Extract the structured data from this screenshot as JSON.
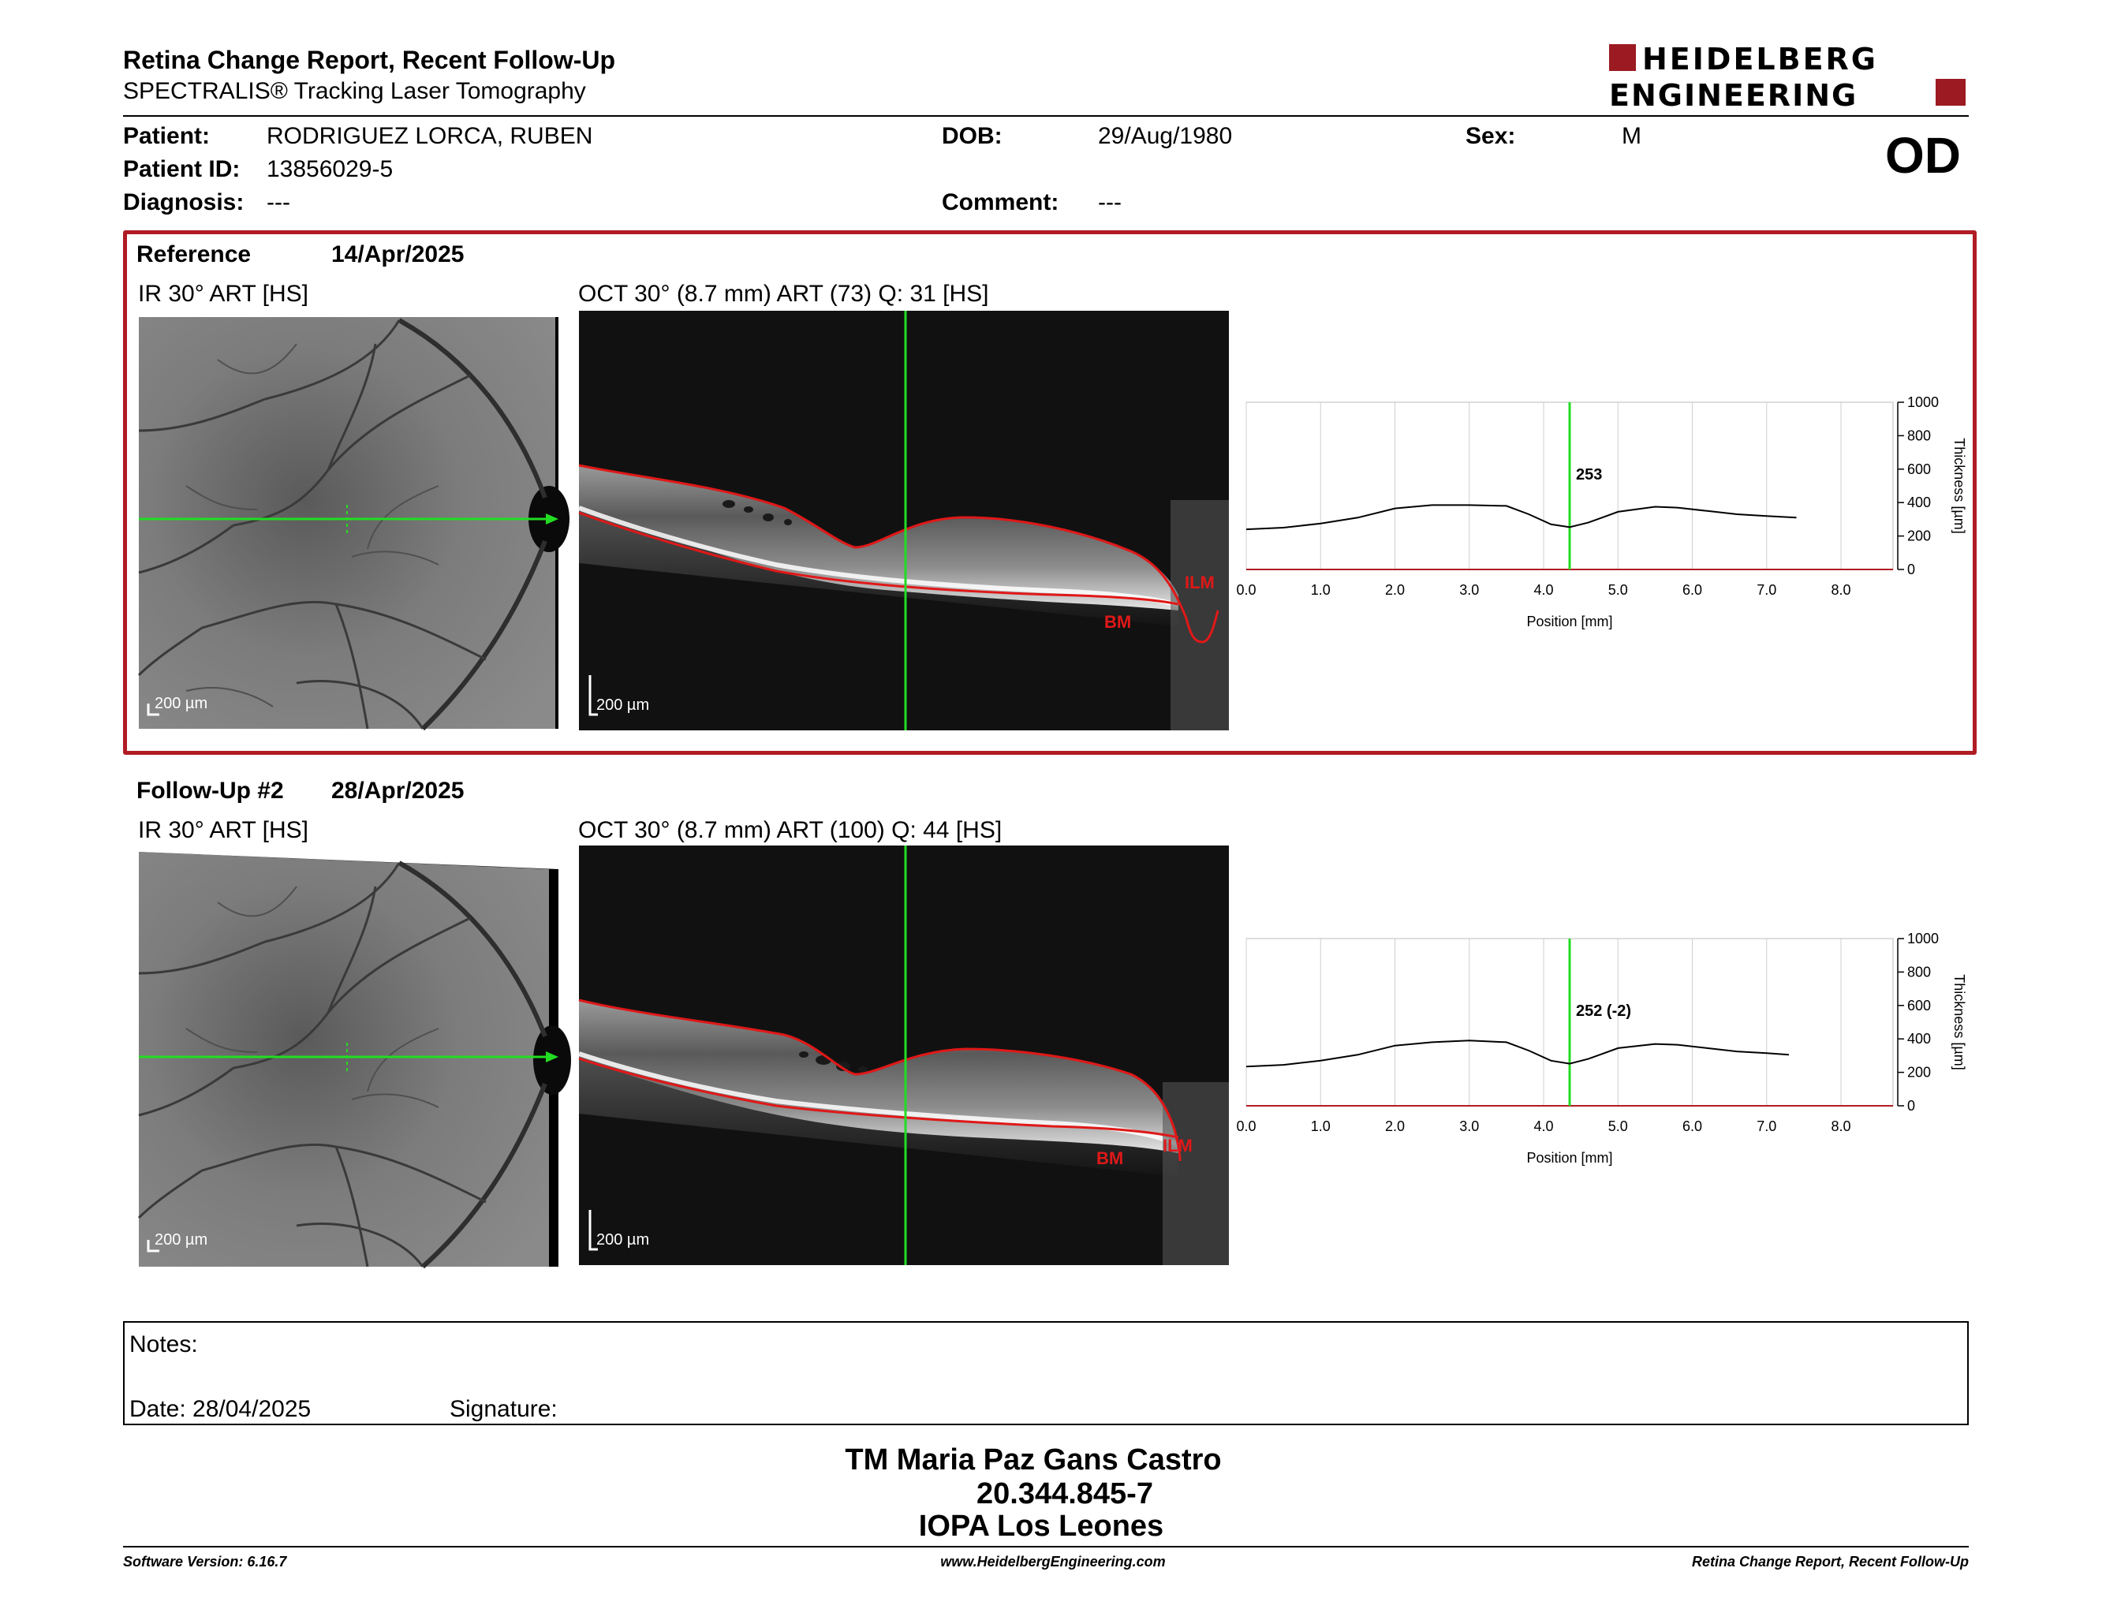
{
  "header": {
    "title": "Retina Change Report, Recent Follow-Up",
    "subtitle": "SPECTRALIS® Tracking Laser Tomography",
    "logo_line1": "HEIDELBERG",
    "logo_line2": "ENGINEERING",
    "eye": "OD"
  },
  "patient": {
    "patient_label": "Patient:",
    "patient_value": "RODRIGUEZ LORCA, RUBEN",
    "id_label": "Patient ID:",
    "id_value": "13856029-5",
    "diag_label": "Diagnosis:",
    "diag_value": "---",
    "dob_label": "DOB:",
    "dob_value": "29/Aug/1980",
    "comment_label": "Comment:",
    "comment_value": "---",
    "sex_label": "Sex:",
    "sex_value": "M"
  },
  "reference": {
    "label": "Reference",
    "date": "14/Apr/2025",
    "ir_caption": "IR 30° ART [HS]",
    "oct_caption": "OCT 30° (8.7 mm) ART (73) Q: 31 [HS]",
    "scale": "200 µm",
    "ilm": "ILM",
    "bm": "BM",
    "marker_value": "253"
  },
  "followup": {
    "label": "Follow-Up #2",
    "date": "28/Apr/2025",
    "ir_caption": "IR 30° ART [HS]",
    "oct_caption": "OCT 30° (8.7 mm) ART (100) Q: 44 [HS]",
    "scale": "200 µm",
    "ilm": "ILM",
    "bm": "BM",
    "marker_value": "252 (-2)"
  },
  "chart_data": [
    {
      "type": "line",
      "xlabel": "Position [mm]",
      "ylabel": "Thickness [µm]",
      "xlim": [
        0,
        8.7
      ],
      "ylim": [
        0,
        1000
      ],
      "xticks": [
        "0.0",
        "1.0",
        "2.0",
        "3.0",
        "4.0",
        "5.0",
        "6.0",
        "7.0",
        "8.0"
      ],
      "yticks": [
        "0",
        "200",
        "400",
        "600",
        "800",
        "1000"
      ],
      "marker_x": 4.35,
      "marker_label": "253",
      "series": [
        {
          "x": [
            0,
            0.5,
            1.0,
            1.5,
            2.0,
            2.5,
            3.0,
            3.5,
            3.8,
            4.1,
            4.35,
            4.6,
            5.0,
            5.5,
            5.8,
            6.2,
            6.6,
            7.0,
            7.4
          ],
          "y": [
            240,
            250,
            275,
            310,
            365,
            385,
            385,
            380,
            330,
            270,
            253,
            280,
            345,
            375,
            370,
            350,
            330,
            320,
            310
          ]
        }
      ]
    },
    {
      "type": "line",
      "xlabel": "Position [mm]",
      "ylabel": "Thickness [µm]",
      "xlim": [
        0,
        8.7
      ],
      "ylim": [
        0,
        1000
      ],
      "xticks": [
        "0.0",
        "1.0",
        "2.0",
        "3.0",
        "4.0",
        "5.0",
        "6.0",
        "7.0",
        "8.0"
      ],
      "yticks": [
        "0",
        "200",
        "400",
        "600",
        "800",
        "1000"
      ],
      "marker_x": 4.35,
      "marker_label": "252 (-2)",
      "series": [
        {
          "x": [
            0,
            0.5,
            1.0,
            1.5,
            2.0,
            2.5,
            3.0,
            3.5,
            3.8,
            4.1,
            4.35,
            4.6,
            5.0,
            5.5,
            5.8,
            6.2,
            6.6,
            7.0,
            7.3
          ],
          "y": [
            235,
            245,
            270,
            305,
            360,
            380,
            390,
            380,
            330,
            270,
            252,
            280,
            345,
            370,
            365,
            345,
            325,
            315,
            305
          ]
        }
      ]
    }
  ],
  "notes": {
    "label": "Notes:",
    "date_label": "Date: 28/04/2025",
    "signature_label": "Signature:"
  },
  "signature": {
    "name": "TM Maria Paz Gans Castro",
    "id": "20.344.845-7",
    "org": "IOPA Los Leones"
  },
  "footer": {
    "left": "Software Version: 6.16.7",
    "center": "www.HeidelbergEngineering.com",
    "right": "Retina Change Report, Recent Follow-Up"
  },
  "colors": {
    "accent": "#b01c24",
    "green": "#22dd22",
    "red": "#e01818"
  }
}
